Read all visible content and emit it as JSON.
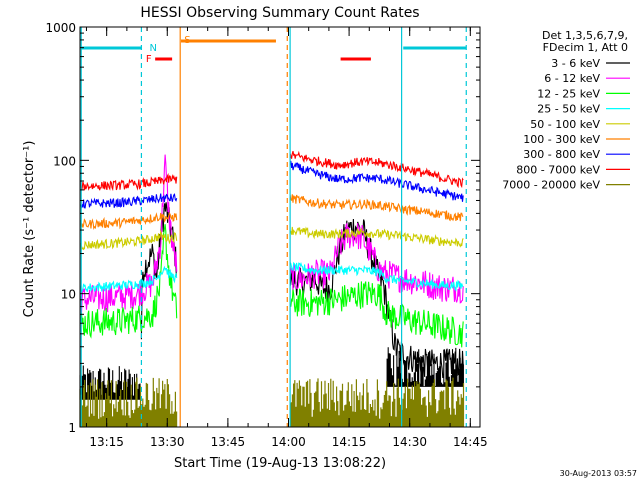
{
  "chart_data": {
    "type": "line",
    "title": "HESSI Observing Summary Count Rates",
    "xlabel": "Start Time (19-Aug-13 13:08:22)",
    "ylabel": "Count Rate (s⁻¹ detector⁻¹)",
    "yscale": "log",
    "ylim": [
      1,
      1000
    ],
    "xlim_minutes": [
      0,
      99
    ],
    "x_tick_labels": [
      "13:15",
      "13:30",
      "13:45",
      "14:00",
      "14:15",
      "14:30",
      "14:45"
    ],
    "x_tick_minutes": [
      6.6,
      21.6,
      36.6,
      51.6,
      66.6,
      81.6,
      96.6
    ],
    "y_tick_labels": [
      "1",
      "10",
      "100",
      "1000"
    ],
    "y_tick_values": [
      1,
      10,
      100,
      1000
    ],
    "legend_header": [
      "Det 1,3,5,6,7,9,",
      "FDecim 1, Att 0"
    ],
    "legend_position": "right",
    "footer_date": "30-Aug-2013 03:57",
    "flags": [
      {
        "label": "N",
        "color": "#00c8d8"
      },
      {
        "label": "F",
        "color": "#ff0000"
      },
      {
        "label": "S",
        "color": "#ff8000"
      }
    ],
    "series": [
      {
        "name": "3 - 6 keV",
        "color": "#000000",
        "seg1": [
          [
            0,
            2.2
          ],
          [
            15,
            2.2
          ],
          [
            15.5,
            15
          ],
          [
            17,
            18
          ],
          [
            18,
            20
          ],
          [
            19,
            13
          ],
          [
            20,
            28
          ],
          [
            21,
            45
          ],
          [
            22,
            35
          ],
          [
            23,
            26
          ],
          [
            24,
            15
          ]
        ],
        "seg2": [
          [
            52,
            13
          ],
          [
            55,
            12
          ],
          [
            58,
            13
          ],
          [
            60,
            11
          ],
          [
            62,
            11
          ],
          [
            64,
            20
          ],
          [
            66,
            30
          ],
          [
            68,
            32
          ],
          [
            70,
            30
          ],
          [
            72,
            20
          ],
          [
            74,
            13
          ],
          [
            75,
            12
          ],
          [
            76,
            8
          ],
          [
            78,
            4
          ],
          [
            80,
            3.5
          ],
          [
            85,
            3
          ],
          [
            95,
            3
          ]
        ]
      },
      {
        "name": "6 - 12 keV",
        "color": "#ff00ff",
        "seg1": [
          [
            0,
            9
          ],
          [
            10,
            9.5
          ],
          [
            14,
            10
          ],
          [
            18,
            12
          ],
          [
            20,
            25
          ],
          [
            21,
            100
          ],
          [
            22,
            40
          ],
          [
            23,
            22
          ],
          [
            24,
            16
          ]
        ],
        "seg2": [
          [
            52,
            13
          ],
          [
            55,
            13
          ],
          [
            58,
            14
          ],
          [
            62,
            14
          ],
          [
            64,
            22
          ],
          [
            66,
            27
          ],
          [
            68,
            28
          ],
          [
            70,
            26
          ],
          [
            72,
            20
          ],
          [
            74,
            15
          ],
          [
            76,
            14
          ],
          [
            80,
            13
          ],
          [
            85,
            12
          ],
          [
            90,
            11
          ],
          [
            95,
            11
          ]
        ]
      },
      {
        "name": "12 - 25 keV",
        "color": "#00ff00",
        "seg1": [
          [
            0,
            6
          ],
          [
            10,
            6.2
          ],
          [
            14,
            6.5
          ],
          [
            18,
            7
          ],
          [
            20,
            12
          ],
          [
            21,
            30
          ],
          [
            22,
            15
          ],
          [
            23,
            10
          ],
          [
            24,
            7
          ]
        ],
        "seg2": [
          [
            52,
            8.5
          ],
          [
            58,
            8.5
          ],
          [
            64,
            9
          ],
          [
            70,
            10
          ],
          [
            74,
            10
          ],
          [
            76,
            7
          ],
          [
            80,
            6.5
          ],
          [
            85,
            6
          ],
          [
            90,
            5.5
          ],
          [
            95,
            5
          ]
        ]
      },
      {
        "name": "25 - 50 keV",
        "color": "#00ffff",
        "seg1": [
          [
            0,
            11
          ],
          [
            10,
            11.5
          ],
          [
            16,
            12
          ],
          [
            19,
            13
          ],
          [
            21,
            16
          ],
          [
            22,
            14
          ],
          [
            24,
            13
          ]
        ],
        "seg2": [
          [
            52,
            16
          ],
          [
            58,
            15
          ],
          [
            64,
            15
          ],
          [
            70,
            15
          ],
          [
            74,
            14.5
          ],
          [
            76,
            13
          ],
          [
            80,
            12.5
          ],
          [
            85,
            12
          ],
          [
            90,
            11.5
          ],
          [
            95,
            11.5
          ]
        ]
      },
      {
        "name": "50 - 100 keV",
        "color": "#cccc00",
        "seg1": [
          [
            0,
            23
          ],
          [
            10,
            24
          ],
          [
            16,
            25
          ],
          [
            20,
            27
          ],
          [
            22,
            26
          ],
          [
            24,
            27
          ]
        ],
        "seg2": [
          [
            52,
            30
          ],
          [
            58,
            28
          ],
          [
            64,
            28
          ],
          [
            70,
            29
          ],
          [
            74,
            28
          ],
          [
            80,
            27
          ],
          [
            88,
            25
          ],
          [
            95,
            24
          ]
        ]
      },
      {
        "name": "100 - 300 keV",
        "color": "#ff8000",
        "seg1": [
          [
            0,
            33
          ],
          [
            10,
            34
          ],
          [
            16,
            36
          ],
          [
            20,
            38
          ],
          [
            22,
            37
          ],
          [
            24,
            38
          ]
        ],
        "seg2": [
          [
            52,
            52
          ],
          [
            58,
            48
          ],
          [
            64,
            46
          ],
          [
            70,
            47
          ],
          [
            74,
            46
          ],
          [
            80,
            43
          ],
          [
            88,
            40
          ],
          [
            95,
            37
          ]
        ]
      },
      {
        "name": "300 - 800 keV",
        "color": "#0000ff",
        "seg1": [
          [
            0,
            47
          ],
          [
            10,
            48
          ],
          [
            16,
            50
          ],
          [
            20,
            52
          ],
          [
            22,
            52
          ],
          [
            24,
            52
          ]
        ],
        "seg2": [
          [
            52,
            92
          ],
          [
            58,
            80
          ],
          [
            64,
            72
          ],
          [
            70,
            74
          ],
          [
            74,
            73
          ],
          [
            80,
            66
          ],
          [
            88,
            58
          ],
          [
            95,
            52
          ]
        ]
      },
      {
        "name": "800 - 7000 keV",
        "color": "#ff0000",
        "seg1": [
          [
            0,
            64
          ],
          [
            10,
            65
          ],
          [
            16,
            67
          ],
          [
            20,
            70
          ],
          [
            22,
            72
          ],
          [
            24,
            72
          ]
        ],
        "seg2": [
          [
            52,
            110
          ],
          [
            58,
            100
          ],
          [
            64,
            92
          ],
          [
            70,
            98
          ],
          [
            74,
            96
          ],
          [
            80,
            88
          ],
          [
            88,
            76
          ],
          [
            95,
            67
          ]
        ]
      },
      {
        "name": "7000 - 20000 keV",
        "color": "#808000",
        "seg1": [
          [
            0,
            1.5
          ],
          [
            24,
            1.5
          ]
        ],
        "seg2": [
          [
            52,
            1.5
          ],
          [
            95,
            1.5
          ]
        ]
      }
    ]
  }
}
